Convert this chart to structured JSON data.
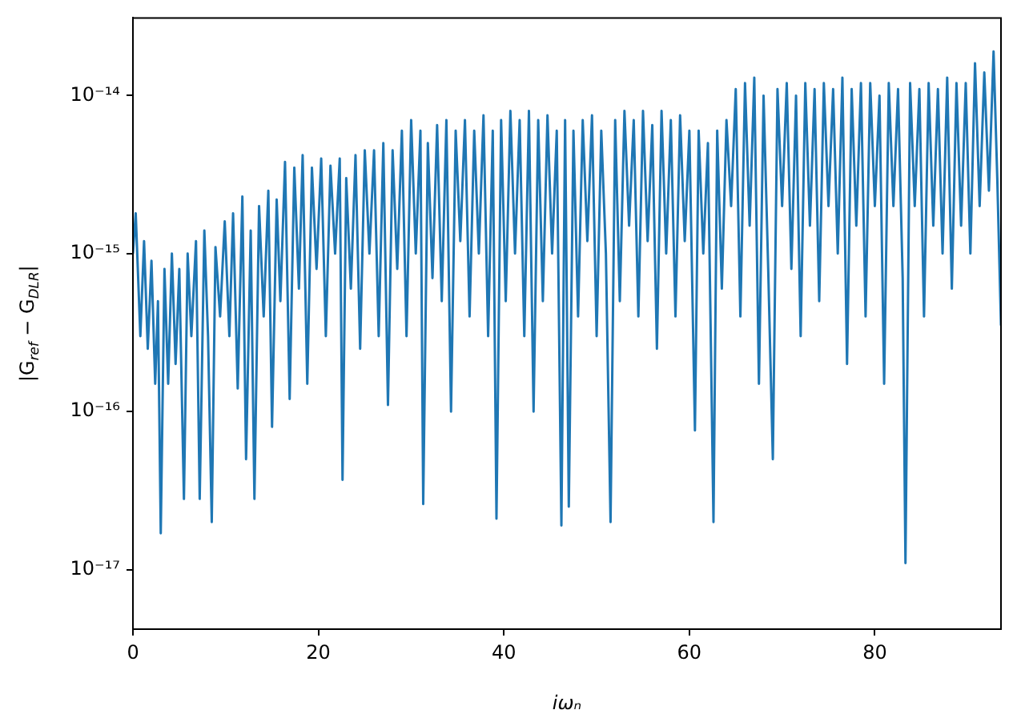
{
  "chart_data": {
    "type": "line",
    "xlabel": "iωₙ",
    "ylabel": "|G$_{ref}$ − G$_{DLR}$|",
    "log": "y",
    "grid": false,
    "legend": false,
    "marker": "none",
    "line_style": "solid",
    "xlim": [
      0,
      93.6
    ],
    "xticks": [
      0,
      20,
      40,
      60,
      80
    ],
    "ylim": [
      4.2e-18,
      3.1e-14
    ],
    "yticks": [
      {
        "value": 1e-17,
        "label": "10⁻¹⁷"
      },
      {
        "value": 1e-16,
        "label": "10⁻¹⁶"
      },
      {
        "value": 1e-15,
        "label": "10⁻¹⁵"
      },
      {
        "value": 1e-14,
        "label": "10⁻¹⁴"
      }
    ],
    "series": [
      {
        "color": "#1f77b4",
        "x": [
          0,
          0.3,
          0.8,
          1.2,
          1.6,
          2.0,
          2.4,
          2.7,
          3.0,
          3.4,
          3.8,
          4.2,
          4.6,
          5.0,
          5.5,
          5.9,
          6.3,
          6.8,
          7.2,
          7.7,
          8.1,
          8.5,
          8.9,
          9.4,
          9.9,
          10.4,
          10.8,
          11.3,
          11.8,
          12.2,
          12.7,
          13.1,
          13.6,
          14.1,
          14.6,
          15.0,
          15.5,
          15.9,
          16.4,
          16.9,
          17.4,
          17.9,
          18.3,
          18.8,
          19.3,
          19.8,
          20.3,
          20.8,
          21.3,
          21.8,
          22.3,
          22.6,
          23.0,
          23.5,
          24.0,
          24.5,
          25.0,
          25.5,
          26.0,
          26.5,
          27.0,
          27.5,
          28.0,
          28.5,
          29.0,
          29.5,
          30.0,
          30.5,
          31.0,
          31.3,
          31.8,
          32.3,
          32.8,
          33.3,
          33.8,
          34.3,
          34.8,
          35.3,
          35.8,
          36.3,
          36.8,
          37.3,
          37.8,
          38.3,
          38.8,
          39.2,
          39.7,
          40.2,
          40.7,
          41.2,
          41.7,
          42.2,
          42.7,
          43.2,
          43.7,
          44.2,
          44.7,
          45.2,
          45.7,
          46.2,
          46.6,
          47.0,
          47.5,
          48.0,
          48.5,
          49.0,
          49.5,
          50.0,
          50.5,
          51.0,
          51.5,
          52.0,
          52.5,
          53.0,
          53.5,
          54.0,
          54.5,
          55.0,
          55.5,
          56.0,
          56.5,
          57.0,
          57.5,
          58.0,
          58.5,
          59.0,
          59.5,
          60.0,
          60.6,
          61.0,
          61.5,
          62.0,
          62.6,
          63.0,
          63.5,
          64.0,
          64.5,
          65.0,
          65.5,
          66.0,
          66.5,
          67.0,
          67.5,
          68.0,
          68.5,
          69.0,
          69.5,
          70.0,
          70.5,
          71.0,
          71.5,
          72.0,
          72.5,
          73.0,
          73.5,
          74.0,
          74.5,
          75.0,
          75.5,
          76.0,
          76.5,
          77.0,
          77.5,
          78.0,
          78.5,
          79.0,
          79.5,
          80.0,
          80.5,
          81.0,
          81.5,
          82.0,
          82.5,
          83.0,
          83.3,
          83.8,
          84.3,
          84.8,
          85.3,
          85.8,
          86.3,
          86.8,
          87.3,
          87.8,
          88.3,
          88.8,
          89.3,
          89.8,
          90.3,
          90.8,
          91.3,
          91.8,
          92.3,
          92.8,
          93.2,
          93.6
        ],
        "values": [
          1e-15,
          1.8e-15,
          3e-16,
          1.2e-15,
          2.5e-16,
          9e-16,
          1.5e-16,
          5e-16,
          1.7e-17,
          8e-16,
          1.5e-16,
          1e-15,
          2e-16,
          8e-16,
          2.8e-17,
          1e-15,
          3e-16,
          1.2e-15,
          2.8e-17,
          1.4e-15,
          3e-16,
          2e-17,
          1.1e-15,
          4e-16,
          1.6e-15,
          3e-16,
          1.8e-15,
          1.4e-16,
          2.3e-15,
          5e-17,
          1.4e-15,
          2.8e-17,
          2e-15,
          4e-16,
          2.5e-15,
          8e-17,
          2.2e-15,
          5e-16,
          3.8e-15,
          1.2e-16,
          3.5e-15,
          6e-16,
          4.2e-15,
          1.5e-16,
          3.5e-15,
          8e-16,
          4e-15,
          3e-16,
          3.6e-15,
          1e-15,
          4e-15,
          3.7e-17,
          3e-15,
          6e-16,
          4.2e-15,
          2.5e-16,
          4.5e-15,
          1e-15,
          4.5e-15,
          3e-16,
          5e-15,
          1.1e-16,
          4.5e-15,
          8e-16,
          6e-15,
          3e-16,
          7e-15,
          1e-15,
          6e-15,
          2.6e-17,
          5e-15,
          7e-16,
          6.5e-15,
          5e-16,
          7e-15,
          1e-16,
          6e-15,
          1.2e-15,
          7e-15,
          4e-16,
          6e-15,
          1e-15,
          7.5e-15,
          3e-16,
          6e-15,
          2.1e-17,
          7e-15,
          5e-16,
          8e-15,
          1e-15,
          7e-15,
          3e-16,
          8e-15,
          1e-16,
          7e-15,
          5e-16,
          7.5e-15,
          1e-15,
          6e-15,
          1.9e-17,
          7e-15,
          2.5e-17,
          6e-15,
          4e-16,
          7e-15,
          1.2e-15,
          7.5e-15,
          3e-16,
          6e-15,
          1e-15,
          2e-17,
          7e-15,
          5e-16,
          8e-15,
          1.5e-15,
          7e-15,
          4e-16,
          8e-15,
          1.2e-15,
          6.5e-15,
          2.5e-16,
          8e-15,
          1e-15,
          7e-15,
          4e-16,
          7.5e-15,
          1.2e-15,
          6e-15,
          7.6e-17,
          6e-15,
          1e-15,
          5e-15,
          2e-17,
          6e-15,
          6e-16,
          7e-15,
          2e-15,
          1.1e-14,
          4e-16,
          1.2e-14,
          1.5e-15,
          1.3e-14,
          1.5e-16,
          1e-14,
          8e-16,
          5e-17,
          1.1e-14,
          2e-15,
          1.2e-14,
          8e-16,
          1e-14,
          3e-16,
          1.2e-14,
          1.5e-15,
          1.1e-14,
          5e-16,
          1.2e-14,
          2e-15,
          1.1e-14,
          1e-15,
          1.3e-14,
          2e-16,
          1.1e-14,
          1.5e-15,
          1.2e-14,
          4e-16,
          1.2e-14,
          2e-15,
          1e-14,
          1.5e-16,
          1.2e-14,
          2e-15,
          1.1e-14,
          7e-16,
          1.1e-17,
          1.2e-14,
          2e-15,
          1.1e-14,
          4e-16,
          1.2e-14,
          1.5e-15,
          1.1e-14,
          1e-15,
          1.3e-14,
          6e-16,
          1.2e-14,
          1.5e-15,
          1.2e-14,
          1e-15,
          1.6e-14,
          2e-15,
          1.4e-14,
          2.5e-15,
          1.9e-14,
          3e-15,
          3.5e-16
        ]
      }
    ]
  }
}
